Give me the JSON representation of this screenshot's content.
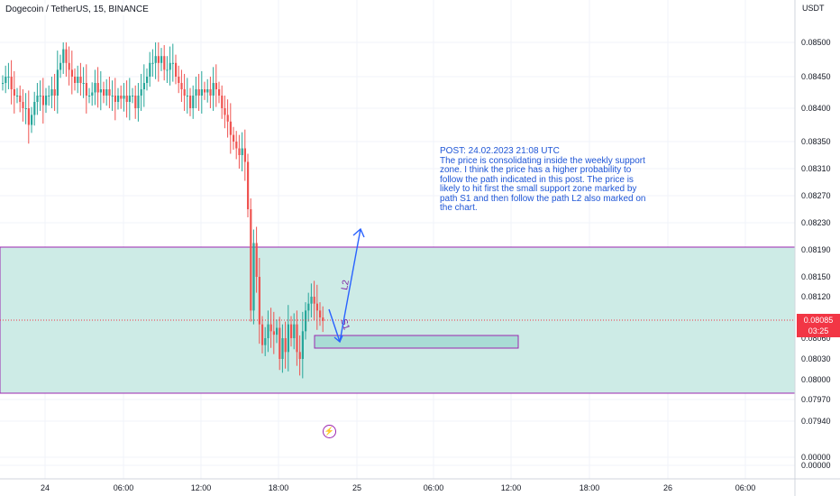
{
  "header": {
    "title": "Dogecoin / TetherUS, 15, BINANCE"
  },
  "annotation": {
    "lines": [
      "POST: 24.02.2023 21:08 UTC",
      "The price is consolidating inside the weekly support",
      "zone. I think the price has a higher probability to",
      "follow the path indicated in this post. The price is",
      "likely to hit first the small support zone marked by",
      "path S1 and then follow the path L2 also marked on",
      "the chart."
    ]
  },
  "price_axis": {
    "currency": "USDT",
    "last_price": "0.08085",
    "countdown": "03:25"
  },
  "colors": {
    "up": "#26a69a",
    "down": "#ef5350",
    "zone_fill": "#cdebe6",
    "zone_border": "#9c27b0",
    "path": "#2962ff",
    "last_price": "#f23645"
  },
  "chart_data": {
    "type": "candlestick",
    "symbol": "Dogecoin / TetherUS",
    "interval": "15",
    "exchange": "BINANCE",
    "y_ticks": [
      "0.08500",
      "0.08450",
      "0.08400",
      "0.08350",
      "0.08310",
      "0.08270",
      "0.08230",
      "0.08190",
      "0.08150",
      "0.08120",
      "0.08090",
      "0.08060",
      "0.08030",
      "0.08000",
      "0.07970",
      "0.07940",
      "0.00000",
      "0.00000"
    ],
    "x_ticks": [
      "24",
      "06:00",
      "12:00",
      "18:00",
      "25",
      "06:00",
      "12:00",
      "18:00",
      "26",
      "06:00"
    ],
    "close_series": [
      0.0844,
      0.0845,
      0.0845,
      0.0843,
      0.0842,
      0.0842,
      0.0841,
      0.084,
      0.084,
      0.08375,
      0.0839,
      0.0841,
      0.0842,
      0.0842,
      0.08405,
      0.0842,
      0.0842,
      0.0843,
      0.0842,
      0.0846,
      0.0847,
      0.0849,
      0.0847,
      0.0846,
      0.0845,
      0.0844,
      0.0845,
      0.0844,
      0.0844,
      0.0842,
      0.0842,
      0.08425,
      0.0844,
      0.08425,
      0.0843,
      0.0842,
      0.0843,
      0.0842,
      0.0842,
      0.0841,
      0.0842,
      0.08415,
      0.0842,
      0.0841,
      0.0842,
      0.0842,
      0.084,
      0.0842,
      0.0843,
      0.0844,
      0.0845,
      0.0847,
      0.0847,
      0.0848,
      0.0847,
      0.0848,
      0.0846,
      0.0846,
      0.0847,
      0.0847,
      0.0845,
      0.0844,
      0.0843,
      0.0842,
      0.0842,
      0.084,
      0.0842,
      0.0843,
      0.0842,
      0.0843,
      0.08425,
      0.0843,
      0.0842,
      0.0844,
      0.0843,
      0.0842,
      0.084,
      0.0839,
      0.0838,
      0.0836,
      0.0835,
      0.0834,
      0.0833,
      0.0834,
      0.0832,
      0.0825,
      0.081,
      0.082,
      0.0815,
      0.0808,
      0.0805,
      0.0806,
      0.0808,
      0.0807,
      0.08065,
      0.08075,
      0.0803,
      0.0806,
      0.0804,
      0.0808,
      0.0806,
      0.0808,
      0.0804,
      0.0803,
      0.0807,
      0.081,
      0.0811,
      0.0812,
      0.0811,
      0.081,
      0.0809,
      0.08085
    ],
    "annotations": [
      {
        "type": "rectangle",
        "label": "weekly support zone",
        "price_range": [
          0.0798,
          0.08195
        ]
      },
      {
        "type": "rectangle",
        "label": "small support zone",
        "price_range": [
          0.08045,
          0.08062
        ]
      },
      {
        "type": "path",
        "label": "S1",
        "direction": "down"
      },
      {
        "type": "path",
        "label": "L2",
        "direction": "up"
      }
    ],
    "title": "Dogecoin / TetherUS, 15, BINANCE"
  }
}
